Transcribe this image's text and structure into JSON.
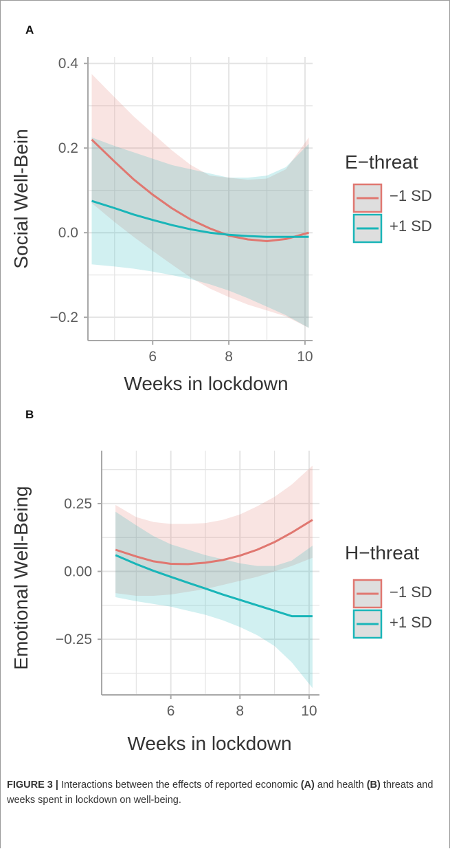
{
  "chart_data": [
    {
      "panel": "A",
      "type": "line",
      "xlabel": "Weeks in lockdown",
      "ylabel": "Social Well-Bein",
      "xlim": [
        4.3,
        10.2
      ],
      "ylim": [
        -0.255,
        0.415
      ],
      "xticks": [
        6,
        8,
        10
      ],
      "xtick_labels": [
        "6",
        "8",
        "10"
      ],
      "yticks": [
        -0.2,
        0.0,
        0.2,
        0.4
      ],
      "ytick_labels": [
        "−0.2",
        "0.0",
        "0.2",
        "0.4"
      ],
      "legend": {
        "title": "E−threat",
        "position": "right"
      },
      "series": [
        {
          "name": "−1 SD",
          "color": "#e07770",
          "x": [
            4.4,
            5.0,
            5.5,
            6.0,
            6.5,
            7.0,
            7.5,
            8.0,
            8.5,
            9.0,
            9.5,
            10.1
          ],
          "y": [
            0.22,
            0.168,
            0.126,
            0.09,
            0.058,
            0.031,
            0.01,
            -0.007,
            -0.016,
            -0.02,
            -0.015,
            0.0
          ],
          "lower": [
            0.07,
            0.025,
            -0.01,
            -0.043,
            -0.075,
            -0.106,
            -0.132,
            -0.152,
            -0.17,
            -0.184,
            -0.198,
            -0.225
          ],
          "upper": [
            0.375,
            0.32,
            0.275,
            0.235,
            0.195,
            0.16,
            0.135,
            0.13,
            0.125,
            0.128,
            0.15,
            0.225
          ]
        },
        {
          "name": "+1 SD",
          "color": "#19b5b8",
          "x": [
            4.4,
            5.0,
            5.5,
            6.0,
            6.5,
            7.0,
            7.5,
            8.0,
            8.5,
            9.0,
            9.5,
            10.1
          ],
          "y": [
            0.075,
            0.058,
            0.043,
            0.03,
            0.018,
            0.008,
            0.0,
            -0.005,
            -0.008,
            -0.01,
            -0.01,
            -0.01
          ],
          "lower": [
            -0.075,
            -0.08,
            -0.085,
            -0.092,
            -0.1,
            -0.11,
            -0.122,
            -0.137,
            -0.155,
            -0.175,
            -0.195,
            -0.225
          ],
          "upper": [
            0.225,
            0.205,
            0.19,
            0.175,
            0.16,
            0.15,
            0.14,
            0.13,
            0.13,
            0.135,
            0.155,
            0.21
          ]
        }
      ]
    },
    {
      "panel": "B",
      "type": "line",
      "xlabel": "Weeks in lockdown",
      "ylabel": "Emotional Well-Being",
      "xlim": [
        4.0,
        10.3
      ],
      "ylim": [
        -0.455,
        0.445
      ],
      "xticks": [
        6,
        8,
        10
      ],
      "xtick_labels": [
        "6",
        "8",
        "10"
      ],
      "yticks": [
        -0.25,
        0.0,
        0.25
      ],
      "ytick_labels": [
        "−0.25",
        "0.00",
        "0.25"
      ],
      "legend": {
        "title": "H−threat",
        "position": "right"
      },
      "series": [
        {
          "name": "−1 SD",
          "color": "#e07770",
          "x": [
            4.4,
            5.0,
            5.5,
            6.0,
            6.5,
            7.0,
            7.5,
            8.0,
            8.5,
            9.0,
            9.5,
            10.1
          ],
          "y": [
            0.08,
            0.055,
            0.037,
            0.028,
            0.027,
            0.032,
            0.042,
            0.058,
            0.08,
            0.108,
            0.143,
            0.19
          ],
          "lower": [
            -0.08,
            -0.09,
            -0.09,
            -0.085,
            -0.075,
            -0.065,
            -0.05,
            -0.035,
            -0.02,
            0.0,
            0.02,
            0.05
          ],
          "upper": [
            0.245,
            0.2,
            0.182,
            0.175,
            0.175,
            0.178,
            0.19,
            0.21,
            0.24,
            0.275,
            0.32,
            0.39
          ]
        },
        {
          "name": "+1 SD",
          "color": "#19b5b8",
          "x": [
            4.4,
            5.0,
            5.5,
            6.0,
            6.5,
            7.0,
            7.5,
            8.0,
            8.5,
            9.0,
            9.5,
            10.1
          ],
          "y": [
            0.06,
            0.027,
            0.002,
            -0.02,
            -0.042,
            -0.063,
            -0.085,
            -0.105,
            -0.125,
            -0.145,
            -0.165,
            -0.165
          ],
          "lower": [
            -0.095,
            -0.11,
            -0.12,
            -0.13,
            -0.145,
            -0.16,
            -0.18,
            -0.205,
            -0.235,
            -0.275,
            -0.335,
            -0.43
          ],
          "upper": [
            0.22,
            0.17,
            0.13,
            0.1,
            0.08,
            0.06,
            0.045,
            0.03,
            0.02,
            0.02,
            0.04,
            0.095
          ]
        }
      ]
    }
  ],
  "caption": {
    "figure_label": "FIGURE 3 |",
    "t1": " Interactions between the effects of reported economic ",
    "a_label": "(A)",
    "t2": " and health ",
    "b_label": "(B)",
    "t3": " threats and weeks spent in lockdown on well-being."
  },
  "colors": {
    "red": "#e07770",
    "teal": "#19b5b8",
    "grid": "#e4e4e4",
    "axis": "#a8a8a8"
  }
}
